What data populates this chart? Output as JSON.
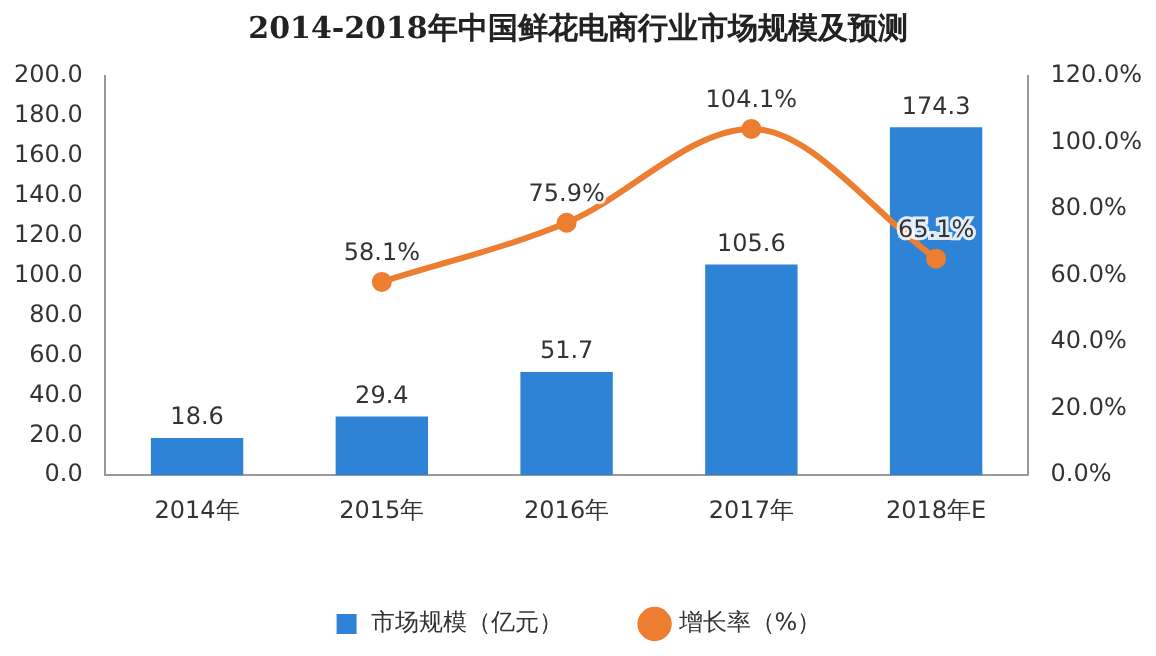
{
  "chart_data": {
    "type": "bar",
    "title": "2014-2018年中国鲜花电商行业市场规模及预测",
    "categories": [
      "2014年",
      "2015年",
      "2016年",
      "2017年",
      "2018年E"
    ],
    "series": [
      {
        "name": "市场规模（亿元）",
        "color": "#2e83d6",
        "values": [
          18.6,
          29.4,
          51.7,
          105.6,
          174.3
        ],
        "value_labels": [
          "18.6",
          "29.4",
          "51.7",
          "105.6",
          "174.3"
        ]
      },
      {
        "name": "增长率（%）",
        "type": "line",
        "axis": "y2",
        "color": "#ed7d31",
        "marker": "circle",
        "line_style": "solid",
        "values": [
          null,
          58.1,
          75.9,
          104.1,
          65.1
        ],
        "value_labels": [
          null,
          "58.1%",
          "75.9%",
          "104.1%",
          "65.1%"
        ]
      }
    ],
    "ylim": [
      0,
      200
    ],
    "yticks": [
      {
        "value": 0,
        "label": "0.0"
      },
      {
        "value": 20,
        "label": "20.0"
      },
      {
        "value": 40,
        "label": "40.0"
      },
      {
        "value": 60,
        "label": "60.0"
      },
      {
        "value": 80,
        "label": "80.0"
      },
      {
        "value": 100,
        "label": "100.0"
      },
      {
        "value": 120,
        "label": "120.0"
      },
      {
        "value": 140,
        "label": "140.0"
      },
      {
        "value": 160,
        "label": "160.0"
      },
      {
        "value": 180,
        "label": "180.0"
      },
      {
        "value": 200,
        "label": "200.0"
      }
    ],
    "y2lim": [
      0,
      120
    ],
    "y2ticks": [
      {
        "value": 0,
        "label": "0.0%"
      },
      {
        "value": 20,
        "label": "20.0%"
      },
      {
        "value": 40,
        "label": "40.0%"
      },
      {
        "value": 60,
        "label": "60.0%"
      },
      {
        "value": 80,
        "label": "80.0%"
      },
      {
        "value": 100,
        "label": "100.0%"
      },
      {
        "value": 120,
        "label": "120.0%"
      }
    ],
    "grid": false,
    "legend": "bottom"
  }
}
